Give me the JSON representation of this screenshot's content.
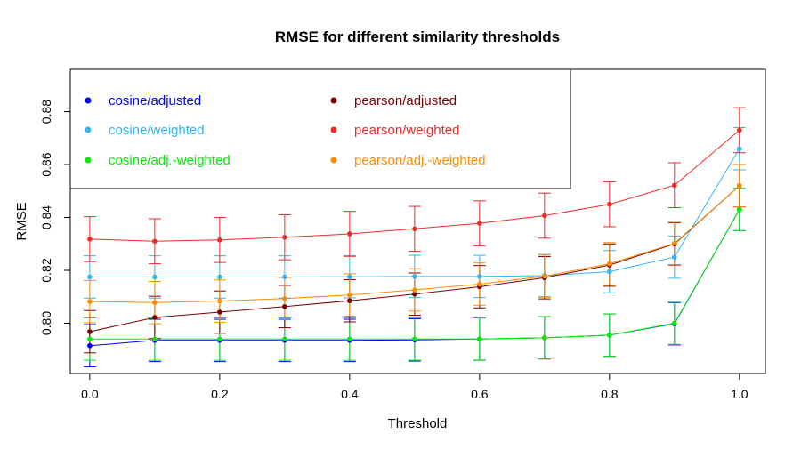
{
  "chart_data": {
    "type": "line",
    "title": "RMSE for different similarity thresholds",
    "xlabel": "Threshold",
    "ylabel": "RMSE",
    "xlim": [
      -0.03,
      1.04
    ],
    "ylim": [
      0.781,
      0.896
    ],
    "xticks": [
      "0.0",
      "0.2",
      "0.4",
      "0.6",
      "0.8",
      "1.0"
    ],
    "yticks": [
      "0.80",
      "0.82",
      "0.84",
      "0.86",
      "0.88"
    ],
    "grid": false,
    "legend_position": "top-left",
    "x": [
      0.0,
      0.1,
      0.2,
      0.3,
      0.4,
      0.5,
      0.6,
      0.7,
      0.8,
      0.9,
      1.0
    ],
    "series": [
      {
        "name": "cosine/adjusted",
        "color": "#0000ee",
        "values": [
          0.7915,
          0.7935,
          0.7935,
          0.7935,
          0.7935,
          0.7937,
          0.794,
          0.7945,
          0.7955,
          0.7998,
          0.843
        ],
        "error": 0.008
      },
      {
        "name": "cosine/weighted",
        "color": "#33b5ee",
        "values": [
          0.8175,
          0.8175,
          0.8175,
          0.8175,
          0.8176,
          0.8177,
          0.8177,
          0.818,
          0.8195,
          0.825,
          0.866
        ],
        "error": 0.008
      },
      {
        "name": "cosine/adj.-weighted",
        "color": "#00ee00",
        "values": [
          0.794,
          0.794,
          0.794,
          0.794,
          0.794,
          0.794,
          0.794,
          0.7945,
          0.7955,
          0.8,
          0.843
        ],
        "error": 0.008
      },
      {
        "name": "pearson/adjusted",
        "color": "#7a0000",
        "values": [
          0.7968,
          0.8022,
          0.8042,
          0.8063,
          0.8085,
          0.811,
          0.8138,
          0.8172,
          0.822,
          0.83,
          0.852
        ],
        "error": 0.008
      },
      {
        "name": "pearson/weighted",
        "color": "#ee2a2a",
        "values": [
          0.8318,
          0.831,
          0.8315,
          0.8325,
          0.8338,
          0.8357,
          0.8378,
          0.8407,
          0.845,
          0.8522,
          0.873
        ],
        "error": 0.0085
      },
      {
        "name": "pearson/adj.-weighted",
        "color": "#ff8c00",
        "values": [
          0.8082,
          0.8078,
          0.8084,
          0.8093,
          0.8107,
          0.8126,
          0.8148,
          0.8178,
          0.8225,
          0.8302,
          0.852
        ],
        "error": 0.008
      }
    ]
  }
}
